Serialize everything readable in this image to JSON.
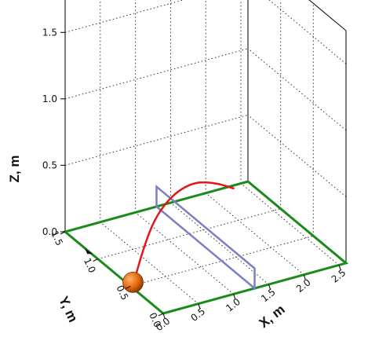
{
  "chart_data": {
    "type": "line",
    "projection": "3d",
    "xlabel": "X, m",
    "ylabel": "Y, m",
    "zlabel": "Z, m",
    "xlim": [
      0,
      2.6
    ],
    "ylim": [
      0,
      1.5
    ],
    "zlim": [
      0,
      1.75
    ],
    "x_ticks": [
      "0.0",
      "0.5",
      "1.0",
      "1.5",
      "2.0",
      "2.5"
    ],
    "y_ticks": [
      "0.0",
      "0.5",
      "1.0",
      "1.5"
    ],
    "z_ticks": [
      "0.0",
      "0.5",
      "1.0",
      "1.5"
    ],
    "grid": true,
    "table_boundary": {
      "color": "#1a8a1a",
      "corners": [
        [
          0,
          0,
          0
        ],
        [
          2.6,
          0,
          0
        ],
        [
          2.6,
          1.5,
          0
        ],
        [
          0,
          1.5,
          0
        ]
      ]
    },
    "net": {
      "color": "#7b7fc4",
      "x": 1.3,
      "y_range": [
        0,
        1.5
      ],
      "z_range": [
        0,
        0.15
      ]
    },
    "trajectory": {
      "color": "#e3161c",
      "points": [
        [
          0.0,
          0.45,
          0.05
        ],
        [
          0.3,
          0.62,
          0.2
        ],
        [
          0.6,
          0.78,
          0.3
        ],
        [
          0.9,
          0.9,
          0.35
        ],
        [
          1.2,
          1.0,
          0.36
        ],
        [
          1.5,
          1.08,
          0.33
        ],
        [
          1.8,
          1.12,
          0.26
        ],
        [
          2.05,
          1.13,
          0.18
        ]
      ]
    },
    "ball": {
      "color": "#e3680c",
      "position": [
        0.0,
        0.45,
        0.05
      ]
    },
    "spin_marker": {
      "color": "#111111",
      "position": [
        0.0,
        1.15,
        0
      ]
    }
  }
}
